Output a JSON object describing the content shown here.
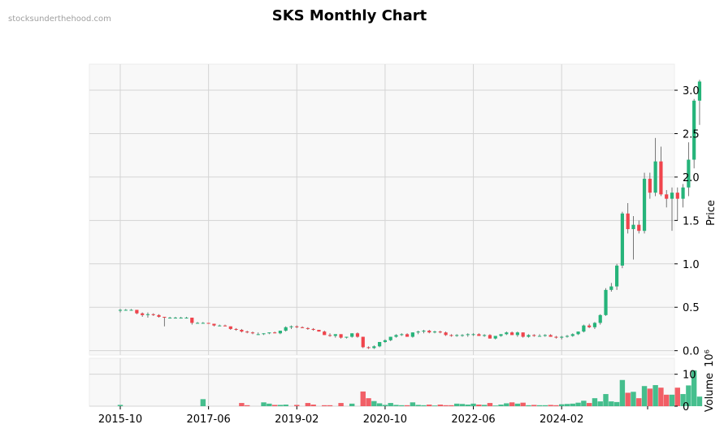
{
  "watermark": "stocksunderthehood.com",
  "colors": {
    "up": "#26b47a",
    "down": "#f0444c",
    "wick": "#555555",
    "grid": "#d4d4d4",
    "panel": "#f8f8f8"
  },
  "chart_data": {
    "type": "candlestick",
    "title": "SKS Monthly Chart",
    "x_tick_labels": [
      "2015-10",
      "2017-06",
      "2019-02",
      "2020-10",
      "2022-06",
      "2024-02"
    ],
    "price_axis": {
      "label": "Price",
      "ticks": [
        "0.0",
        "0.5",
        "1.0",
        "1.5",
        "2.0",
        "2.5",
        "3.0"
      ],
      "ylim": [
        -0.05,
        3.3
      ]
    },
    "volume_axis": {
      "label": "Volume",
      "multiplier": "10⁶",
      "ticks": [
        "0",
        "10"
      ],
      "ylim": [
        0,
        15
      ]
    },
    "start_month": "2015-10",
    "candles_ohlcv": [
      [
        0.46,
        0.48,
        0.44,
        0.47,
        0.4
      ],
      [
        0.47,
        0.48,
        0.46,
        0.47,
        0
      ],
      [
        0.47,
        0.48,
        0.46,
        0.47,
        0
      ],
      [
        0.47,
        0.47,
        0.42,
        0.43,
        0
      ],
      [
        0.43,
        0.44,
        0.39,
        0.41,
        0
      ],
      [
        0.41,
        0.44,
        0.38,
        0.42,
        0
      ],
      [
        0.42,
        0.43,
        0.4,
        0.41,
        0
      ],
      [
        0.41,
        0.42,
        0.38,
        0.39,
        0
      ],
      [
        0.39,
        0.39,
        0.28,
        0.38,
        0
      ],
      [
        0.38,
        0.39,
        0.37,
        0.38,
        0
      ],
      [
        0.38,
        0.39,
        0.37,
        0.38,
        0
      ],
      [
        0.38,
        0.39,
        0.37,
        0.38,
        0
      ],
      [
        0.38,
        0.39,
        0.37,
        0.38,
        0
      ],
      [
        0.38,
        0.38,
        0.3,
        0.32,
        0
      ],
      [
        0.32,
        0.33,
        0.31,
        0.32,
        0
      ],
      [
        0.32,
        0.33,
        0.31,
        0.32,
        2.2
      ],
      [
        0.32,
        0.32,
        0.31,
        0.31,
        0
      ],
      [
        0.31,
        0.31,
        0.28,
        0.29,
        0
      ],
      [
        0.29,
        0.3,
        0.28,
        0.29,
        0
      ],
      [
        0.29,
        0.3,
        0.28,
        0.28,
        0
      ],
      [
        0.28,
        0.28,
        0.24,
        0.25,
        0
      ],
      [
        0.25,
        0.26,
        0.23,
        0.24,
        0
      ],
      [
        0.24,
        0.25,
        0.21,
        0.22,
        1.0
      ],
      [
        0.22,
        0.23,
        0.2,
        0.21,
        0.3
      ],
      [
        0.21,
        0.22,
        0.19,
        0.2,
        0
      ],
      [
        0.19,
        0.21,
        0.18,
        0.19,
        0
      ],
      [
        0.19,
        0.2,
        0.18,
        0.2,
        1.2
      ],
      [
        0.2,
        0.21,
        0.19,
        0.21,
        0.8
      ],
      [
        0.21,
        0.22,
        0.2,
        0.2,
        0.4
      ],
      [
        0.2,
        0.23,
        0.19,
        0.23,
        0.4
      ],
      [
        0.23,
        0.28,
        0.22,
        0.27,
        0.5
      ],
      [
        0.27,
        0.29,
        0.25,
        0.28,
        0
      ],
      [
        0.28,
        0.29,
        0.26,
        0.27,
        0.4
      ],
      [
        0.27,
        0.28,
        0.26,
        0.26,
        0
      ],
      [
        0.26,
        0.27,
        0.24,
        0.25,
        1.0
      ],
      [
        0.25,
        0.26,
        0.23,
        0.24,
        0.5
      ],
      [
        0.24,
        0.24,
        0.22,
        0.22,
        0
      ],
      [
        0.22,
        0.23,
        0.18,
        0.18,
        0.3
      ],
      [
        0.18,
        0.2,
        0.16,
        0.17,
        0.3
      ],
      [
        0.17,
        0.19,
        0.15,
        0.19,
        0
      ],
      [
        0.19,
        0.19,
        0.14,
        0.15,
        1.0
      ],
      [
        0.15,
        0.16,
        0.14,
        0.16,
        0
      ],
      [
        0.16,
        0.2,
        0.15,
        0.2,
        0.8
      ],
      [
        0.2,
        0.21,
        0.15,
        0.16,
        0
      ],
      [
        0.16,
        0.16,
        0.03,
        0.04,
        4.6
      ],
      [
        0.04,
        0.05,
        0.02,
        0.03,
        2.5
      ],
      [
        0.03,
        0.06,
        0.02,
        0.05,
        1.6
      ],
      [
        0.05,
        0.1,
        0.04,
        0.1,
        0.9
      ],
      [
        0.1,
        0.13,
        0.09,
        0.12,
        0.4
      ],
      [
        0.12,
        0.16,
        0.11,
        0.16,
        1.0
      ],
      [
        0.16,
        0.19,
        0.15,
        0.18,
        0.4
      ],
      [
        0.18,
        0.2,
        0.17,
        0.19,
        0.3
      ],
      [
        0.19,
        0.2,
        0.16,
        0.16,
        0.3
      ],
      [
        0.16,
        0.21,
        0.15,
        0.21,
        1.2
      ],
      [
        0.21,
        0.23,
        0.19,
        0.22,
        0.4
      ],
      [
        0.22,
        0.24,
        0.2,
        0.23,
        0.3
      ],
      [
        0.23,
        0.24,
        0.2,
        0.21,
        0.5
      ],
      [
        0.21,
        0.23,
        0.2,
        0.22,
        0.2
      ],
      [
        0.22,
        0.23,
        0.2,
        0.21,
        0.5
      ],
      [
        0.21,
        0.22,
        0.17,
        0.18,
        0.3
      ],
      [
        0.18,
        0.19,
        0.16,
        0.17,
        0.3
      ],
      [
        0.17,
        0.19,
        0.16,
        0.18,
        0.8
      ],
      [
        0.18,
        0.19,
        0.16,
        0.18,
        0.7
      ],
      [
        0.18,
        0.2,
        0.16,
        0.19,
        0.5
      ],
      [
        0.19,
        0.2,
        0.17,
        0.19,
        0.8
      ],
      [
        0.19,
        0.2,
        0.17,
        0.17,
        0.5
      ],
      [
        0.17,
        0.19,
        0.16,
        0.18,
        0.4
      ],
      [
        0.18,
        0.19,
        0.14,
        0.14,
        1.0
      ],
      [
        0.14,
        0.17,
        0.13,
        0.17,
        0.2
      ],
      [
        0.17,
        0.19,
        0.16,
        0.19,
        0.5
      ],
      [
        0.19,
        0.22,
        0.18,
        0.21,
        0.9
      ],
      [
        0.21,
        0.22,
        0.18,
        0.18,
        1.2
      ],
      [
        0.18,
        0.22,
        0.16,
        0.21,
        0.8
      ],
      [
        0.21,
        0.21,
        0.15,
        0.16,
        1.1
      ],
      [
        0.16,
        0.19,
        0.15,
        0.18,
        0.3
      ],
      [
        0.18,
        0.19,
        0.16,
        0.17,
        0.4
      ],
      [
        0.17,
        0.19,
        0.16,
        0.17,
        0.3
      ],
      [
        0.17,
        0.19,
        0.16,
        0.18,
        0.3
      ],
      [
        0.18,
        0.19,
        0.16,
        0.16,
        0.4
      ],
      [
        0.16,
        0.17,
        0.14,
        0.15,
        0.3
      ],
      [
        0.15,
        0.17,
        0.13,
        0.16,
        0.6
      ],
      [
        0.16,
        0.18,
        0.15,
        0.17,
        0.7
      ],
      [
        0.17,
        0.2,
        0.16,
        0.19,
        0.8
      ],
      [
        0.19,
        0.22,
        0.18,
        0.22,
        1.1
      ],
      [
        0.22,
        0.3,
        0.21,
        0.29,
        1.7
      ],
      [
        0.29,
        0.31,
        0.26,
        0.27,
        1.0
      ],
      [
        0.27,
        0.33,
        0.25,
        0.32,
        2.5
      ],
      [
        0.32,
        0.42,
        0.3,
        0.41,
        1.5
      ],
      [
        0.41,
        0.72,
        0.4,
        0.7,
        3.8
      ],
      [
        0.7,
        0.78,
        0.68,
        0.74,
        1.5
      ],
      [
        0.74,
        1.0,
        0.7,
        0.98,
        1.3
      ],
      [
        0.98,
        1.6,
        0.95,
        1.58,
        8.2
      ],
      [
        1.58,
        1.7,
        1.35,
        1.4,
        4.2
      ],
      [
        1.4,
        1.55,
        1.05,
        1.45,
        4.5
      ],
      [
        1.45,
        1.5,
        1.35,
        1.38,
        2.5
      ],
      [
        1.38,
        2.05,
        1.35,
        1.98,
        6.3
      ],
      [
        1.98,
        2.05,
        1.75,
        1.82,
        5.5
      ],
      [
        1.82,
        2.45,
        1.78,
        2.18,
        6.6
      ],
      [
        2.18,
        2.35,
        1.78,
        1.8,
        5.8
      ],
      [
        1.8,
        1.85,
        1.65,
        1.75,
        3.6
      ],
      [
        1.75,
        1.88,
        1.38,
        1.82,
        3.6
      ],
      [
        1.82,
        1.88,
        1.5,
        1.75,
        5.8
      ],
      [
        1.75,
        1.92,
        1.65,
        1.88,
        3.8
      ],
      [
        1.88,
        2.4,
        1.78,
        2.2,
        6.5
      ],
      [
        2.2,
        2.9,
        2.1,
        2.88,
        11.2
      ],
      [
        2.88,
        3.12,
        2.6,
        3.1,
        3.0
      ]
    ]
  }
}
